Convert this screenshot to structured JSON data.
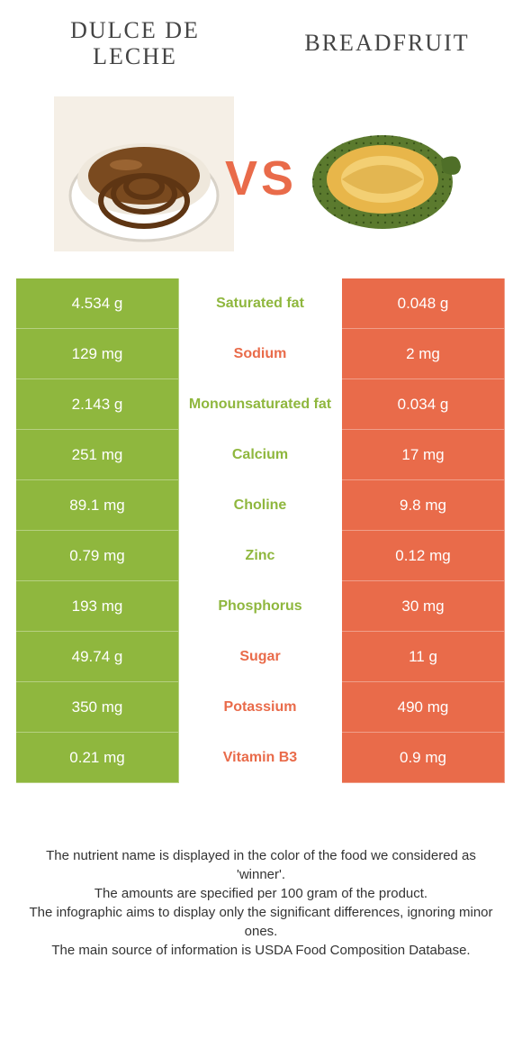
{
  "colors": {
    "green": "#8fb73e",
    "orange": "#e96b4a",
    "text": "#333333",
    "bg": "#ffffff"
  },
  "header": {
    "left_title": "Dulce de leche",
    "right_title": "Breadfruit",
    "vs": "VS"
  },
  "rows": [
    {
      "nutrient": "Saturated fat",
      "left": "4.534 g",
      "right": "0.048 g",
      "winner": "green"
    },
    {
      "nutrient": "Sodium",
      "left": "129 mg",
      "right": "2 mg",
      "winner": "orange"
    },
    {
      "nutrient": "Monounsaturated fat",
      "left": "2.143 g",
      "right": "0.034 g",
      "winner": "green"
    },
    {
      "nutrient": "Calcium",
      "left": "251 mg",
      "right": "17 mg",
      "winner": "green"
    },
    {
      "nutrient": "Choline",
      "left": "89.1 mg",
      "right": "9.8 mg",
      "winner": "green"
    },
    {
      "nutrient": "Zinc",
      "left": "0.79 mg",
      "right": "0.12 mg",
      "winner": "green"
    },
    {
      "nutrient": "Phosphorus",
      "left": "193 mg",
      "right": "30 mg",
      "winner": "green"
    },
    {
      "nutrient": "Sugar",
      "left": "49.74 g",
      "right": "11 g",
      "winner": "orange"
    },
    {
      "nutrient": "Potassium",
      "left": "350 mg",
      "right": "490 mg",
      "winner": "orange"
    },
    {
      "nutrient": "Vitamin B3",
      "left": "0.21 mg",
      "right": "0.9 mg",
      "winner": "orange"
    }
  ],
  "footer": {
    "line1": "The nutrient name is displayed in the color of the food we considered as 'winner'.",
    "line2": "The amounts are specified per 100 gram of the product.",
    "line3": "The infographic aims to display only the significant differences, ignoring minor ones.",
    "line4": "The main source of information is USDA Food Composition Database."
  }
}
